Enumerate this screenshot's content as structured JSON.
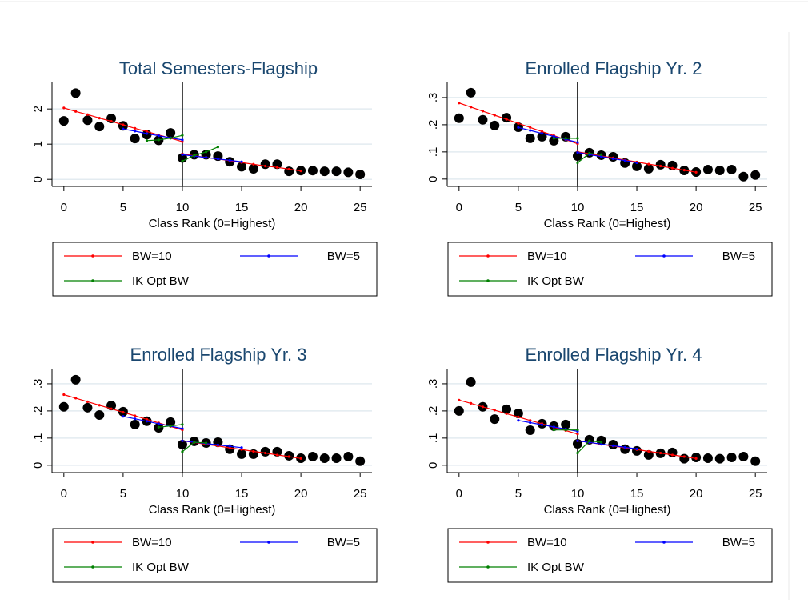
{
  "chart_data": [
    {
      "type": "scatter",
      "title": "Total Semesters-Flagship",
      "xlabel": "Class Rank (0=Highest)",
      "xlim": [
        -1,
        26
      ],
      "xticks": [
        0,
        5,
        10,
        15,
        20,
        25
      ],
      "ylim": [
        -0.2,
        2.64
      ],
      "yticks": [
        0,
        1,
        2
      ],
      "grid": true,
      "cutoff": 10,
      "legend": "bottom",
      "dot_color": "#000000",
      "x": [
        0,
        1,
        2,
        3,
        4,
        5,
        6,
        7,
        8,
        9,
        10,
        11,
        12,
        13,
        14,
        15,
        16,
        17,
        18,
        19,
        20,
        21,
        22,
        23,
        24,
        25
      ],
      "values": [
        1.66,
        2.45,
        1.68,
        1.5,
        1.73,
        1.52,
        1.16,
        1.27,
        1.11,
        1.32,
        0.61,
        0.7,
        0.7,
        0.66,
        0.5,
        0.36,
        0.3,
        0.43,
        0.43,
        0.23,
        0.25,
        0.25,
        0.23,
        0.23,
        0.2,
        0.14
      ],
      "series": [
        {
          "name": "BW=10",
          "color": "#ff0000",
          "x": [
            0,
            1,
            2,
            3,
            4,
            5,
            6,
            7,
            8,
            9,
            10,
            null,
            10,
            11,
            12,
            13,
            14,
            15,
            16,
            17,
            18,
            19,
            20
          ],
          "values": [
            2.03,
            1.93,
            1.84,
            1.74,
            1.65,
            1.55,
            1.45,
            1.36,
            1.26,
            1.17,
            1.07,
            null,
            0.72,
            0.67,
            0.62,
            0.58,
            0.53,
            0.48,
            0.43,
            0.38,
            0.34,
            0.29,
            0.24
          ]
        },
        {
          "name": "BW=5",
          "color": "#0000ff",
          "x": [
            5,
            6,
            7,
            8,
            9,
            10,
            null,
            10,
            11,
            12,
            13,
            14,
            15
          ],
          "values": [
            1.43,
            1.37,
            1.3,
            1.24,
            1.18,
            1.12,
            null,
            0.7,
            0.66,
            0.62,
            0.58,
            0.54,
            0.5
          ]
        },
        {
          "name": "IK Opt BW",
          "color": "#008000",
          "x": [
            7,
            8,
            9,
            10,
            null,
            10,
            11,
            12,
            13
          ],
          "values": [
            1.1,
            1.12,
            1.17,
            1.25,
            null,
            0.52,
            0.68,
            0.78,
            0.92
          ]
        }
      ]
    },
    {
      "type": "scatter",
      "title": "Enrolled Flagship Yr. 2",
      "xlabel": "Class Rank (0=Highest)",
      "xlim": [
        -1,
        26
      ],
      "xticks": [
        0,
        5,
        10,
        15,
        20,
        25
      ],
      "ylim": [
        -0.027,
        0.341
      ],
      "yticks": [
        0,
        {
          "value": 0.1,
          "label": ".1"
        },
        {
          "value": 0.2,
          "label": ".2"
        },
        {
          "value": 0.3,
          "label": ".3"
        }
      ],
      "grid": true,
      "cutoff": 10,
      "legend": "bottom",
      "dot_color": "#000000",
      "x": [
        0,
        1,
        2,
        3,
        4,
        5,
        6,
        7,
        8,
        9,
        10,
        11,
        12,
        13,
        14,
        15,
        16,
        17,
        18,
        19,
        20,
        21,
        22,
        23,
        24,
        25
      ],
      "values": [
        0.224,
        0.318,
        0.218,
        0.197,
        0.226,
        0.191,
        0.15,
        0.156,
        0.141,
        0.156,
        0.085,
        0.097,
        0.088,
        0.082,
        0.059,
        0.047,
        0.038,
        0.053,
        0.05,
        0.032,
        0.026,
        0.035,
        0.032,
        0.035,
        0.009,
        0.015
      ],
      "series": [
        {
          "name": "BW=10",
          "color": "#ff0000",
          "x": [
            0,
            1,
            2,
            3,
            4,
            5,
            6,
            7,
            8,
            9,
            10,
            null,
            10,
            11,
            12,
            13,
            14,
            15,
            16,
            17,
            18,
            19,
            20
          ],
          "values": [
            0.28,
            0.265,
            0.25,
            0.235,
            0.22,
            0.205,
            0.19,
            0.175,
            0.16,
            0.145,
            0.13,
            null,
            0.1,
            0.093,
            0.085,
            0.078,
            0.07,
            0.063,
            0.055,
            0.048,
            0.04,
            0.033,
            0.025
          ]
        },
        {
          "name": "BW=5",
          "color": "#0000ff",
          "x": [
            5,
            6,
            7,
            8,
            9,
            10,
            null,
            10,
            11,
            12,
            13,
            14,
            15
          ],
          "values": [
            0.19,
            0.179,
            0.168,
            0.157,
            0.146,
            0.135,
            null,
            0.098,
            0.09,
            0.083,
            0.075,
            0.068,
            0.06
          ]
        },
        {
          "name": "IK Opt BW",
          "color": "#008000",
          "x": [
            8,
            9,
            10,
            null,
            10,
            11,
            12
          ],
          "values": [
            0.15,
            0.15,
            0.15,
            null,
            0.06,
            0.095,
            0.09
          ]
        }
      ]
    },
    {
      "type": "scatter",
      "title": "Enrolled Flagship Yr. 3",
      "xlabel": "Class Rank (0=Highest)",
      "xlim": [
        -1,
        26
      ],
      "xticks": [
        0,
        5,
        10,
        15,
        20,
        25
      ],
      "ylim": [
        -0.027,
        0.341
      ],
      "yticks": [
        0,
        {
          "value": 0.1,
          "label": ".1"
        },
        {
          "value": 0.2,
          "label": ".2"
        },
        {
          "value": 0.3,
          "label": ".3"
        }
      ],
      "grid": true,
      "cutoff": 10,
      "legend": "bottom",
      "dot_color": "#000000",
      "x": [
        0,
        1,
        2,
        3,
        4,
        5,
        6,
        7,
        8,
        9,
        10,
        11,
        12,
        13,
        14,
        15,
        16,
        17,
        18,
        19,
        20,
        21,
        22,
        23,
        24,
        25
      ],
      "values": [
        0.215,
        0.315,
        0.212,
        0.185,
        0.22,
        0.197,
        0.15,
        0.162,
        0.138,
        0.159,
        0.076,
        0.088,
        0.082,
        0.085,
        0.059,
        0.041,
        0.041,
        0.05,
        0.05,
        0.035,
        0.026,
        0.032,
        0.026,
        0.026,
        0.032,
        0.015
      ],
      "series": [
        {
          "name": "BW=10",
          "color": "#ff0000",
          "x": [
            0,
            1,
            2,
            3,
            4,
            5,
            6,
            7,
            8,
            9,
            10,
            null,
            10,
            11,
            12,
            13,
            14,
            15,
            16,
            17,
            18,
            19,
            20
          ],
          "values": [
            0.26,
            0.247,
            0.234,
            0.221,
            0.208,
            0.195,
            0.182,
            0.169,
            0.156,
            0.143,
            0.13,
            null,
            0.09,
            0.084,
            0.077,
            0.071,
            0.064,
            0.058,
            0.051,
            0.045,
            0.038,
            0.032,
            0.025
          ]
        },
        {
          "name": "BW=5",
          "color": "#0000ff",
          "x": [
            5,
            6,
            7,
            8,
            9,
            10,
            null,
            10,
            11,
            12,
            13,
            14,
            15
          ],
          "values": [
            0.18,
            0.171,
            0.162,
            0.153,
            0.144,
            0.135,
            null,
            0.09,
            0.085,
            0.08,
            0.075,
            0.07,
            0.065
          ]
        },
        {
          "name": "IK Opt BW",
          "color": "#008000",
          "x": [
            8,
            9,
            10,
            null,
            10,
            11,
            12
          ],
          "values": [
            0.14,
            0.145,
            0.15,
            null,
            0.05,
            0.085,
            0.082
          ]
        }
      ]
    },
    {
      "type": "scatter",
      "title": "Enrolled Flagship Yr. 4",
      "xlabel": "Class Rank (0=Highest)",
      "xlim": [
        -1,
        26
      ],
      "xticks": [
        0,
        5,
        10,
        15,
        20,
        25
      ],
      "ylim": [
        -0.027,
        0.341
      ],
      "yticks": [
        0,
        {
          "value": 0.1,
          "label": ".1"
        },
        {
          "value": 0.2,
          "label": ".2"
        },
        {
          "value": 0.3,
          "label": ".3"
        }
      ],
      "grid": true,
      "cutoff": 10,
      "legend": "bottom",
      "dot_color": "#000000",
      "x": [
        0,
        1,
        2,
        3,
        4,
        5,
        6,
        7,
        8,
        9,
        10,
        11,
        12,
        13,
        14,
        15,
        16,
        17,
        18,
        19,
        20,
        21,
        22,
        23,
        24,
        25
      ],
      "values": [
        0.2,
        0.306,
        0.215,
        0.17,
        0.206,
        0.191,
        0.129,
        0.153,
        0.144,
        0.15,
        0.079,
        0.094,
        0.091,
        0.076,
        0.059,
        0.053,
        0.038,
        0.044,
        0.047,
        0.024,
        0.029,
        0.026,
        0.024,
        0.029,
        0.032,
        0.015
      ],
      "series": [
        {
          "name": "BW=10",
          "color": "#ff0000",
          "x": [
            0,
            1,
            2,
            3,
            4,
            5,
            6,
            7,
            8,
            9,
            10,
            null,
            10,
            11,
            12,
            13,
            14,
            15,
            16,
            17,
            18,
            19,
            20
          ],
          "values": [
            0.24,
            0.228,
            0.215,
            0.203,
            0.19,
            0.178,
            0.165,
            0.153,
            0.14,
            0.128,
            0.115,
            null,
            0.09,
            0.084,
            0.077,
            0.071,
            0.064,
            0.058,
            0.051,
            0.045,
            0.038,
            0.032,
            0.025
          ]
        },
        {
          "name": "BW=5",
          "color": "#0000ff",
          "x": [
            5,
            6,
            7,
            8,
            9,
            10,
            null,
            10,
            11,
            12,
            13,
            14,
            15
          ],
          "values": [
            0.165,
            0.157,
            0.149,
            0.141,
            0.133,
            0.125,
            null,
            0.09,
            0.084,
            0.078,
            0.072,
            0.066,
            0.06
          ]
        },
        {
          "name": "IK Opt BW",
          "color": "#008000",
          "x": [
            8,
            9,
            10,
            null,
            10,
            11,
            12
          ],
          "values": [
            0.13,
            0.13,
            0.13,
            null,
            0.045,
            0.09,
            0.085
          ]
        }
      ]
    }
  ]
}
